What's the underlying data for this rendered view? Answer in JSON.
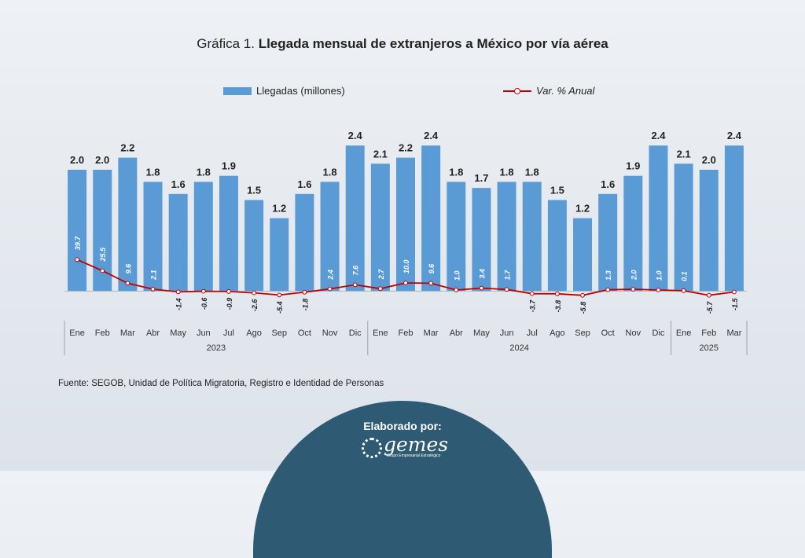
{
  "title": {
    "lead": "Gráfica 1.",
    "main": "Llegada mensual de extranjeros a México por vía aérea"
  },
  "legend": {
    "bars": "Llegadas (millones)",
    "line": "Var. % Anual"
  },
  "source": "Fuente: SEGOB, Unidad de Política Migratoria, Registro e Identidad de Personas",
  "footer": {
    "label": "Elaborado por:",
    "logo_text": "gemes",
    "logo_sub": "Grupo Empresarial Estratégico"
  },
  "colors": {
    "bar": "#5b9bd5",
    "line": "#c00000",
    "badge": "#2e5b73"
  },
  "chart_data": {
    "type": "bar",
    "categories": [
      "Ene",
      "Feb",
      "Mar",
      "Abr",
      "May",
      "Jun",
      "Jul",
      "Ago",
      "Sep",
      "Oct",
      "Nov",
      "Dic",
      "Ene",
      "Feb",
      "Mar",
      "Abr",
      "May",
      "Jun",
      "Jul",
      "Ago",
      "Sep",
      "Oct",
      "Nov",
      "Dic",
      "Ene",
      "Feb",
      "Mar"
    ],
    "years": [
      {
        "label": "2023",
        "start": 0,
        "end": 11
      },
      {
        "label": "2024",
        "start": 12,
        "end": 23
      },
      {
        "label": "2025",
        "start": 24,
        "end": 26
      }
    ],
    "series": [
      {
        "name": "Llegadas (millones)",
        "type": "bar",
        "values": [
          2.0,
          2.0,
          2.2,
          1.8,
          1.6,
          1.8,
          1.9,
          1.5,
          1.2,
          1.6,
          1.8,
          2.4,
          2.1,
          2.2,
          2.4,
          1.8,
          1.7,
          1.8,
          1.8,
          1.5,
          1.2,
          1.6,
          1.9,
          2.4,
          2.1,
          2.0,
          2.4
        ],
        "labels": [
          "2.0",
          "2.0",
          "2.2",
          "1.8",
          "1.6",
          "1.8",
          "1.9",
          "1.5",
          "1.2",
          "1.6",
          "1.8",
          "2.4",
          "2.1",
          "2.2",
          "2.4",
          "1.8",
          "1.7",
          "1.8",
          "1.8",
          "1.5",
          "1.2",
          "1.6",
          "1.9",
          "2.4",
          "2.1",
          "2.0",
          "2.4"
        ]
      },
      {
        "name": "Var. % Anual",
        "type": "line",
        "values": [
          39.7,
          25.5,
          9.6,
          2.1,
          -1.4,
          -0.6,
          -0.9,
          -2.6,
          -5.4,
          -1.8,
          2.4,
          7.6,
          2.7,
          10.0,
          9.6,
          1.0,
          3.4,
          1.7,
          -3.7,
          -3.8,
          -5.8,
          1.3,
          2.0,
          1.0,
          0.1,
          -5.7,
          -1.5
        ],
        "labels": [
          "39.7",
          "25.5",
          "9.6",
          "2.1",
          "-1.4",
          "-0.6",
          "-0.9",
          "-2.6",
          "-5.4",
          "-1.8",
          "2.4",
          "7.6",
          "2.7",
          "10.0",
          "9.6",
          "1.0",
          "3.4",
          "1.7",
          "-3.7",
          "-3.8",
          "-5.8",
          "1.3",
          "2.0",
          "1.0",
          "0.1",
          "-5.7",
          "-1.5"
        ]
      }
    ]
  }
}
